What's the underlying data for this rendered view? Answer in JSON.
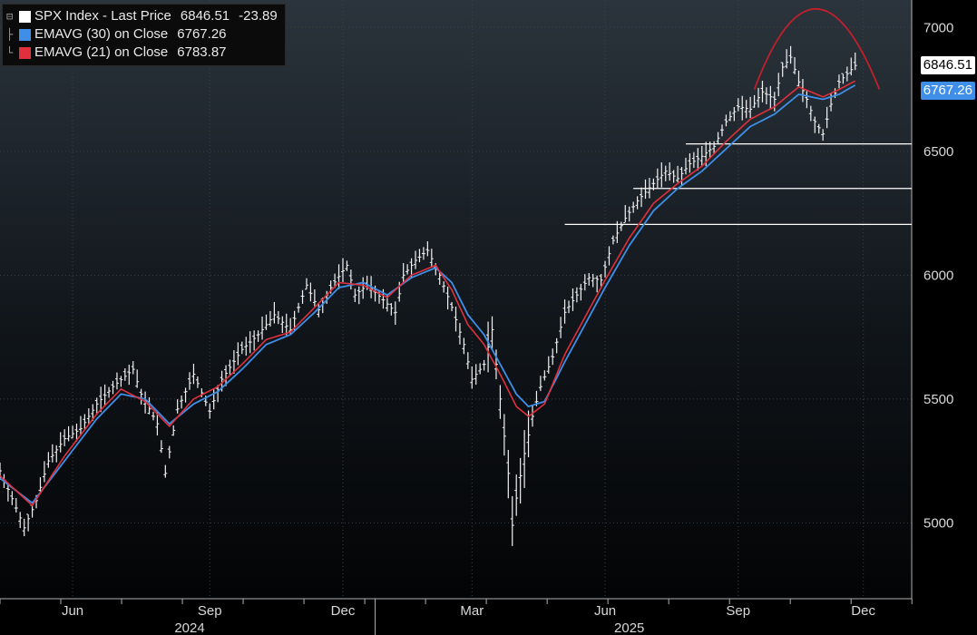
{
  "chart_data": {
    "type": "line",
    "ylim": [
      4800,
      7100
    ],
    "y_ticks": [
      5000,
      5500,
      6000,
      6500,
      7000
    ],
    "x_months": [
      {
        "label": "Jun",
        "index": 18
      },
      {
        "label": "Sep",
        "index": 52
      },
      {
        "label": "Dec",
        "index": 85
      },
      {
        "label": "Mar",
        "index": 117
      },
      {
        "label": "Jun",
        "index": 150
      },
      {
        "label": "Sep",
        "index": 183
      },
      {
        "label": "Dec",
        "index": 214
      }
    ],
    "x_years": [
      {
        "label": "2024",
        "index": 47
      },
      {
        "label": "2025",
        "index": 156
      }
    ],
    "year_divider_index": 93,
    "grid": true,
    "legend_position": "top-left",
    "legend": [
      {
        "name": "SPX Index - Last Price",
        "value": "6846.51",
        "change": "-23.89",
        "color": "#ffffff"
      },
      {
        "name": "EMAVG (30)  on Close",
        "value": "6767.26",
        "color": "#3f8fe8"
      },
      {
        "name": "EMAVG (21)  on Close",
        "value": "6783.87",
        "color": "#e0303c"
      }
    ],
    "last_price_tag": {
      "label": "6846.51",
      "value": 6846.51
    },
    "ema30_tag": {
      "label": "6767.26",
      "value": 6767.26
    },
    "price_anchors": [
      [
        0,
        5210
      ],
      [
        4,
        5060
      ],
      [
        6,
        4980
      ],
      [
        9,
        5090
      ],
      [
        12,
        5250
      ],
      [
        16,
        5340
      ],
      [
        20,
        5380
      ],
      [
        24,
        5480
      ],
      [
        28,
        5550
      ],
      [
        33,
        5620
      ],
      [
        35,
        5520
      ],
      [
        39,
        5400
      ],
      [
        41,
        5200
      ],
      [
        44,
        5460
      ],
      [
        48,
        5600
      ],
      [
        52,
        5450
      ],
      [
        55,
        5580
      ],
      [
        60,
        5700
      ],
      [
        64,
        5760
      ],
      [
        68,
        5840
      ],
      [
        72,
        5780
      ],
      [
        76,
        5960
      ],
      [
        79,
        5860
      ],
      [
        82,
        5950
      ],
      [
        86,
        6040
      ],
      [
        88,
        5920
      ],
      [
        91,
        5960
      ],
      [
        95,
        5900
      ],
      [
        98,
        5850
      ],
      [
        100,
        6000
      ],
      [
        103,
        6060
      ],
      [
        106,
        6100
      ],
      [
        109,
        6000
      ],
      [
        112,
        5870
      ],
      [
        115,
        5720
      ],
      [
        117,
        5580
      ],
      [
        120,
        5640
      ],
      [
        122,
        5780
      ],
      [
        124,
        5500
      ],
      [
        126,
        5200
      ],
      [
        127,
        4990
      ],
      [
        128,
        5100
      ],
      [
        130,
        5280
      ],
      [
        132,
        5430
      ],
      [
        134,
        5550
      ],
      [
        137,
        5670
      ],
      [
        140,
        5850
      ],
      [
        143,
        5920
      ],
      [
        146,
        5990
      ],
      [
        149,
        5980
      ],
      [
        152,
        6140
      ],
      [
        155,
        6230
      ],
      [
        158,
        6300
      ],
      [
        162,
        6370
      ],
      [
        165,
        6420
      ],
      [
        168,
        6390
      ],
      [
        171,
        6450
      ],
      [
        174,
        6480
      ],
      [
        177,
        6520
      ],
      [
        180,
        6620
      ],
      [
        183,
        6680
      ],
      [
        186,
        6670
      ],
      [
        189,
        6740
      ],
      [
        192,
        6710
      ],
      [
        194,
        6840
      ],
      [
        196,
        6880
      ],
      [
        198,
        6780
      ],
      [
        200,
        6710
      ],
      [
        202,
        6620
      ],
      [
        204,
        6570
      ],
      [
        206,
        6690
      ],
      [
        208,
        6780
      ],
      [
        211,
        6830
      ],
      [
        212,
        6846.51
      ]
    ],
    "ema30": [
      [
        0,
        5180
      ],
      [
        8,
        5080
      ],
      [
        16,
        5250
      ],
      [
        24,
        5420
      ],
      [
        30,
        5520
      ],
      [
        36,
        5500
      ],
      [
        42,
        5400
      ],
      [
        48,
        5480
      ],
      [
        54,
        5530
      ],
      [
        60,
        5620
      ],
      [
        66,
        5720
      ],
      [
        72,
        5760
      ],
      [
        78,
        5850
      ],
      [
        84,
        5950
      ],
      [
        90,
        5970
      ],
      [
        96,
        5920
      ],
      [
        102,
        5990
      ],
      [
        108,
        6030
      ],
      [
        112,
        5970
      ],
      [
        116,
        5840
      ],
      [
        120,
        5760
      ],
      [
        124,
        5640
      ],
      [
        128,
        5520
      ],
      [
        131,
        5470
      ],
      [
        135,
        5490
      ],
      [
        140,
        5650
      ],
      [
        146,
        5830
      ],
      [
        150,
        5950
      ],
      [
        156,
        6120
      ],
      [
        162,
        6260
      ],
      [
        168,
        6350
      ],
      [
        174,
        6420
      ],
      [
        180,
        6510
      ],
      [
        186,
        6600
      ],
      [
        192,
        6650
      ],
      [
        198,
        6730
      ],
      [
        204,
        6710
      ],
      [
        208,
        6730
      ],
      [
        212,
        6767.26
      ]
    ],
    "ema21": [
      [
        0,
        5190
      ],
      [
        8,
        5070
      ],
      [
        16,
        5270
      ],
      [
        24,
        5440
      ],
      [
        30,
        5540
      ],
      [
        36,
        5490
      ],
      [
        42,
        5390
      ],
      [
        48,
        5500
      ],
      [
        54,
        5550
      ],
      [
        60,
        5640
      ],
      [
        66,
        5740
      ],
      [
        72,
        5770
      ],
      [
        78,
        5870
      ],
      [
        84,
        5970
      ],
      [
        90,
        5960
      ],
      [
        96,
        5910
      ],
      [
        102,
        6000
      ],
      [
        108,
        6040
      ],
      [
        112,
        5940
      ],
      [
        116,
        5800
      ],
      [
        120,
        5720
      ],
      [
        124,
        5600
      ],
      [
        128,
        5470
      ],
      [
        131,
        5430
      ],
      [
        135,
        5480
      ],
      [
        140,
        5680
      ],
      [
        146,
        5860
      ],
      [
        150,
        5980
      ],
      [
        156,
        6150
      ],
      [
        162,
        6290
      ],
      [
        168,
        6370
      ],
      [
        174,
        6440
      ],
      [
        180,
        6540
      ],
      [
        186,
        6630
      ],
      [
        192,
        6680
      ],
      [
        198,
        6760
      ],
      [
        204,
        6720
      ],
      [
        208,
        6750
      ],
      [
        212,
        6783.87
      ]
    ],
    "support_lines": [
      {
        "value": 6530,
        "from_index": 170,
        "to_index": 226
      },
      {
        "value": 6350,
        "from_index": 157,
        "to_index": 226
      },
      {
        "value": 6205,
        "from_index": 140,
        "to_index": 226
      }
    ],
    "dome_arc": {
      "from": [
        187,
        6750
      ],
      "peak": [
        202,
        7075
      ],
      "to": [
        218,
        6750
      ]
    }
  }
}
